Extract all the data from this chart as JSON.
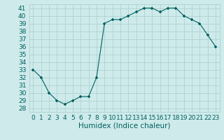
{
  "x": [
    0,
    1,
    2,
    3,
    4,
    5,
    6,
    7,
    8,
    9,
    10,
    11,
    12,
    13,
    14,
    15,
    16,
    17,
    18,
    19,
    20,
    21,
    22,
    23
  ],
  "y": [
    33,
    32,
    30,
    29,
    28.5,
    29,
    29.5,
    29.5,
    32,
    39,
    39.5,
    39.5,
    40,
    40.5,
    41,
    41,
    40.5,
    41,
    41,
    40,
    39.5,
    39,
    37.5,
    36
  ],
  "line_color": "#006060",
  "marker_color": "#006060",
  "bg_color": "#ceeaea",
  "grid_color": "#aacece",
  "xlabel": "Humidex (Indice chaleur)",
  "ylim": [
    27.5,
    41.5
  ],
  "xlim": [
    -0.5,
    23.5
  ],
  "yticks": [
    28,
    29,
    30,
    31,
    32,
    33,
    34,
    35,
    36,
    37,
    38,
    39,
    40,
    41
  ],
  "xticks": [
    0,
    1,
    2,
    3,
    4,
    5,
    6,
    7,
    8,
    9,
    10,
    11,
    12,
    13,
    14,
    15,
    16,
    17,
    18,
    19,
    20,
    21,
    22,
    23
  ],
  "tick_fontsize": 6.5,
  "label_fontsize": 7.5
}
